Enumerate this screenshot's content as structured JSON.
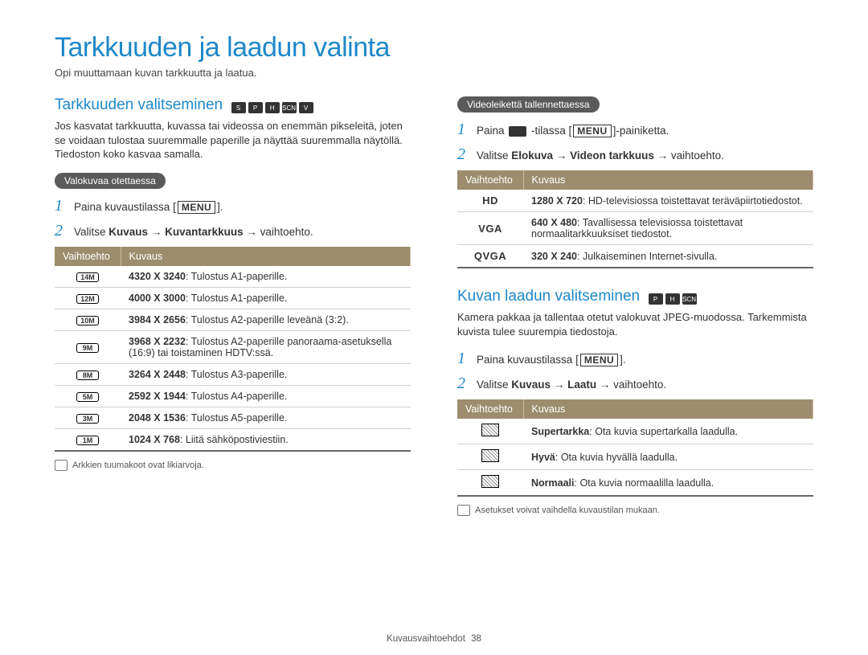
{
  "title": "Tarkkuuden ja laadun valinta",
  "subtitle": "Opi muuttamaan kuvan tarkkuutta ja laatua.",
  "colors": {
    "heading_blue": "#1e88c9",
    "pill_gray": "#5a5a5a",
    "table_header": "#9d8d6e",
    "table_border": "#d0d0d0",
    "text": "#333333"
  },
  "left": {
    "heading": "Tarkkuuden valitseminen",
    "mode_icons": [
      "S",
      "P",
      "H",
      "SCN",
      "V"
    ],
    "intro": "Jos kasvatat tarkkuutta, kuvassa tai videossa on enemmän pikseleitä, joten se voidaan tulostaa suuremmalle paperille ja näyttää suuremmalla näytöllä. Tiedoston koko kasvaa samalla.",
    "pill": "Valokuvaa otettaessa",
    "step1_pre": "Paina kuvaustilassa [",
    "step1_post": "].",
    "step2_pre": "Valitse ",
    "step2_b1": "Kuvaus",
    "step2_arrow1": " → ",
    "step2_b2": "Kuvantarkkuus",
    "step2_arrow2": " → vaihtoehto.",
    "table_h1": "Vaihtoehto",
    "table_h2": "Kuvaus",
    "rows": [
      {
        "icon": "14M",
        "bold": "4320 X 3240",
        "text": ": Tulostus A1-paperille."
      },
      {
        "icon": "12M",
        "bold": "4000 X 3000",
        "text": ": Tulostus A1-paperille."
      },
      {
        "icon": "10M",
        "bold": "3984 X 2656",
        "text": ": Tulostus A2-paperille leveänä (3:2)."
      },
      {
        "icon": "9M",
        "bold": "3968 X 2232",
        "text": ": Tulostus A2-paperille panoraama-asetuksella (16:9) tai toistaminen HDTV:ssä."
      },
      {
        "icon": "8M",
        "bold": "3264 X 2448",
        "text": ": Tulostus A3-paperille."
      },
      {
        "icon": "5M",
        "bold": "2592 X 1944",
        "text": ": Tulostus A4-paperille."
      },
      {
        "icon": "3M",
        "bold": "2048 X 1536",
        "text": ": Tulostus A5-paperille."
      },
      {
        "icon": "1M",
        "bold": "1024 X 768",
        "text": ": Liitä sähköpostiviestiin."
      }
    ],
    "footnote": "Arkkien tuumakoot ovat likiarvoja."
  },
  "right_video": {
    "pill": "Videoleikettä tallennettaessa",
    "step1_pre": "Paina ",
    "step1_mid": " -tilassa [",
    "step1_post": "]-painiketta.",
    "step2_pre": "Valitse ",
    "step2_b1": "Elokuva",
    "step2_arrow1": " → ",
    "step2_b2": "Videon tarkkuus",
    "step2_arrow2": " → vaihtoehto.",
    "table_h1": "Vaihtoehto",
    "table_h2": "Kuvaus",
    "rows": [
      {
        "label": "HD",
        "bold": "1280 X 720",
        "text": ": HD-televisiossa toistettavat teräväpiirtotiedostot."
      },
      {
        "label": "VGA",
        "bold": "640 X 480",
        "text": ": Tavallisessa televisiossa toistettavat normaalitarkkuuksiset tiedostot."
      },
      {
        "label": "QVGA",
        "bold": "320 X 240",
        "text": ": Julkaiseminen Internet-sivulla."
      }
    ]
  },
  "right_quality": {
    "heading": "Kuvan laadun valitseminen",
    "mode_icons": [
      "P",
      "H",
      "SCN"
    ],
    "intro": "Kamera pakkaa ja tallentaa otetut valokuvat JPEG-muodossa. Tarkemmista kuvista tulee suurempia tiedostoja.",
    "step1_pre": "Paina kuvaustilassa [",
    "step1_post": "].",
    "step2_pre": "Valitse ",
    "step2_b1": "Kuvaus",
    "step2_arrow1": " → ",
    "step2_b2": "Laatu",
    "step2_arrow2": " → vaihtoehto.",
    "table_h1": "Vaihtoehto",
    "table_h2": "Kuvaus",
    "rows": [
      {
        "bold": "Supertarkka",
        "text": ": Ota kuvia supertarkalla laadulla."
      },
      {
        "bold": "Hyvä",
        "text": ": Ota kuvia hyvällä laadulla."
      },
      {
        "bold": "Normaali",
        "text": ": Ota kuvia normaalilla laadulla."
      }
    ],
    "footnote": "Asetukset voivat vaihdella kuvaustilan mukaan."
  },
  "footer": {
    "section": "Kuvausvaihtoehdot",
    "page": "38"
  }
}
